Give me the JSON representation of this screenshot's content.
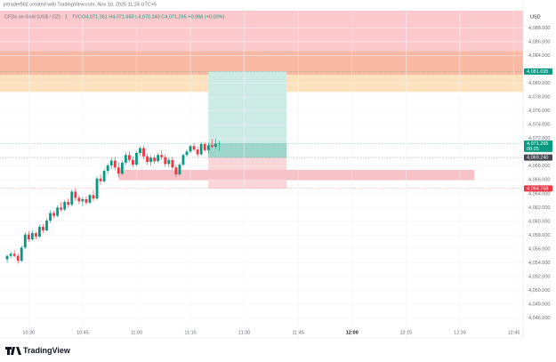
{
  "chart_data": {
    "type": "candlestick",
    "watermark": "jntrader562 created with TradingView.com, Nov 10, 2025 11:24 UTC+5",
    "title": "CFDs on Gold (US$ / OZ) · 1 · TVC",
    "ohlc_legend": "O4,071.261 H4,071.650 L4,070.240 C4,071.265 +0.068 (+0.00%)",
    "currency": "USD",
    "brand": "TradingView",
    "up_color": "#089981",
    "down_color": "#f23645",
    "xlim": [
      622,
      767.6
    ],
    "ylim": [
      4043.5,
      4090.5
    ],
    "xticks": [
      {
        "value": 630,
        "label": "10:30"
      },
      {
        "value": 645,
        "label": "10:45"
      },
      {
        "value": 660,
        "label": "11:00"
      },
      {
        "value": 675,
        "label": "11:15"
      },
      {
        "value": 690,
        "label": "11:30"
      },
      {
        "value": 705,
        "label": "11:45"
      },
      {
        "value": 720,
        "label": "12:00"
      },
      {
        "value": 735,
        "label": "12:15"
      },
      {
        "value": 750,
        "label": "12:30"
      },
      {
        "value": 765,
        "label": "12:45"
      }
    ],
    "yticks": [
      {
        "value": 4088,
        "label": "4,088.000"
      },
      {
        "value": 4086,
        "label": "4,086.000"
      },
      {
        "value": 4084,
        "label": "4,084.000"
      },
      {
        "value": 4080,
        "label": "4,080.000"
      },
      {
        "value": 4078,
        "label": "4,078.000"
      },
      {
        "value": 4076,
        "label": "4,076.000"
      },
      {
        "value": 4074,
        "label": "4,074.000"
      },
      {
        "value": 4072,
        "label": "4,072.000"
      },
      {
        "value": 4068,
        "label": "4,068.000"
      },
      {
        "value": 4066,
        "label": "4,066.000"
      },
      {
        "value": 4064,
        "label": "4,064.000"
      },
      {
        "value": 4062,
        "label": "4,062.000"
      },
      {
        "value": 4060,
        "label": "4,060.000"
      },
      {
        "value": 4058,
        "label": "4,058.000"
      },
      {
        "value": 4056,
        "label": "4,056.000"
      },
      {
        "value": 4054,
        "label": "4,054.000"
      },
      {
        "value": 4052,
        "label": "4,052.000"
      },
      {
        "value": 4050,
        "label": "4,050.000"
      },
      {
        "value": 4048,
        "label": "4,048.000"
      },
      {
        "value": 4046,
        "label": "4,046.000"
      }
    ],
    "x": [
      624,
      625,
      626,
      627,
      628,
      629,
      630,
      631,
      632,
      633,
      634,
      635,
      636,
      637,
      638,
      639,
      640,
      641,
      642,
      643,
      644,
      645,
      646,
      647,
      648,
      649,
      650,
      651,
      652,
      653,
      654,
      655,
      656,
      657,
      658,
      659,
      660,
      661,
      662,
      663,
      664,
      665,
      666,
      667,
      668,
      669,
      670,
      671,
      672,
      673,
      674,
      675,
      676,
      677,
      678,
      679,
      680,
      681,
      682,
      683
    ],
    "open": [
      4054.5,
      4055,
      4055.3,
      4055,
      4054.3,
      4056.2,
      4058.1,
      4057.4,
      4058.3,
      4057.8,
      4059.2,
      4058.7,
      4060.1,
      4061.2,
      4060.8,
      4062,
      4061.7,
      4062.8,
      4062.4,
      4064.3,
      4063.4,
      4062.9,
      4063.2,
      4062.7,
      4063.8,
      4063.3,
      4066.2,
      4065.8,
      4067.3,
      4068.1,
      4068.8,
      4067.8,
      4066.9,
      4068.5,
      4069.6,
      4068.9,
      4068.2,
      4069.9,
      4070.6,
      4069.4,
      4068.6,
      4069.2,
      4068.7,
      4069.6,
      4069.3,
      4068.3,
      4068.9,
      4067.8,
      4066.8,
      4068.2,
      4069.6,
      4070.1,
      4070.9,
      4070.4,
      4069.7,
      4071.2,
      4070.3,
      4071,
      4070.8,
      4071.261
    ],
    "high": [
      4055.2,
      4055.6,
      4055.8,
      4055.4,
      4056.5,
      4058.4,
      4058.6,
      4058.7,
      4058.5,
      4059.5,
      4059.6,
      4060.4,
      4061.6,
      4061.5,
      4062.3,
      4062.8,
      4063.1,
      4063.3,
      4064.6,
      4064.8,
      4063.8,
      4063.5,
      4063.6,
      4064,
      4064.5,
      4066.5,
      4066.8,
      4067.6,
      4068.4,
      4069.2,
      4069.3,
      4068.5,
      4068.8,
      4070,
      4070.1,
      4069.4,
      4070.2,
      4070.9,
      4071,
      4069.8,
      4069.5,
      4069.6,
      4069.9,
      4070.3,
      4069.7,
      4069.2,
      4069.3,
      4068.2,
      4068.5,
      4069.8,
      4070.4,
      4071.1,
      4071.4,
      4070.8,
      4071.5,
      4071.5,
      4071.4,
      4071.9,
      4072,
      4071.65
    ],
    "low": [
      4054,
      4054.6,
      4054.8,
      4053.9,
      4054.1,
      4056,
      4057,
      4057.2,
      4057.4,
      4057.6,
      4058.3,
      4058.5,
      4059.8,
      4060.4,
      4060.6,
      4061.4,
      4061.5,
      4062,
      4062.2,
      4063,
      4062.5,
      4062.2,
      4062.4,
      4062.5,
      4062.9,
      4063.1,
      4065.3,
      4065.6,
      4066.9,
      4067.6,
      4067.4,
      4066.4,
      4066.7,
      4068.2,
      4068.6,
      4067.8,
      4068,
      4069.5,
      4069,
      4068.2,
      4068.1,
      4068.3,
      4068.5,
      4068.9,
      4067.9,
      4067.8,
      4067.5,
      4066.4,
      4066.6,
      4068,
      4069.4,
      4069.9,
      4070.1,
      4069.3,
      4069.5,
      4070,
      4069.8,
      4070.6,
      4070.5,
      4070.24
    ],
    "close": [
      4055,
      4055.3,
      4055,
      4054.3,
      4056.2,
      4058.1,
      4057.4,
      4058.3,
      4057.8,
      4059.2,
      4058.7,
      4060.1,
      4061.2,
      4060.8,
      4062,
      4061.7,
      4062.8,
      4062.4,
      4064.3,
      4063.4,
      4062.9,
      4063.2,
      4062.7,
      4063.8,
      4063.3,
      4066.2,
      4065.8,
      4067.3,
      4068.1,
      4068.8,
      4067.8,
      4066.9,
      4068.5,
      4069.6,
      4068.9,
      4068.2,
      4069.9,
      4070.6,
      4069.4,
      4068.6,
      4069.2,
      4068.7,
      4069.6,
      4069.3,
      4068.3,
      4068.9,
      4067.8,
      4066.8,
      4068.2,
      4069.6,
      4070.1,
      4070.9,
      4070.4,
      4069.7,
      4071.2,
      4070.3,
      4071,
      4070.8,
      4071.2,
      4071.265
    ],
    "zones": [
      {
        "top": 4090.5,
        "bottom": 4084.66,
        "start": 622,
        "end": 767.6,
        "color": "#fccacd"
      },
      {
        "top": 4084.66,
        "bottom": 4081.2,
        "start": 622,
        "end": 767.6,
        "color": "#f9b9a3"
      },
      {
        "top": 4081.2,
        "bottom": 4078.75,
        "start": 622,
        "end": 767.6,
        "color": "#fde2bd"
      },
      {
        "top": 4081.695,
        "bottom": 4069.24,
        "start": 680,
        "end": 701.8,
        "color": "#cdebe5"
      },
      {
        "top": 4069.24,
        "bottom": 4064.768,
        "start": 680,
        "end": 701.8,
        "color": "#fbd6d9"
      },
      {
        "top": 4071.265,
        "bottom": 4069.24,
        "start": 680,
        "end": 701.8,
        "color": "#9fd6cb"
      },
      {
        "top": 4067.45,
        "bottom": 4065.9,
        "start": 655,
        "end": 754,
        "color": "#f7c3c8"
      }
    ],
    "price_labels": [
      {
        "value": 4081.695,
        "label": "4,081.695",
        "color": "#089981"
      },
      {
        "value": 4071.265,
        "label": "4,071.265",
        "color": "#089981",
        "countdown": "00:25"
      },
      {
        "value": 4069.24,
        "label": "4,069.240",
        "color": "#434651"
      },
      {
        "value": 4064.768,
        "label": "4,064.768",
        "color": "#f23645"
      }
    ]
  }
}
